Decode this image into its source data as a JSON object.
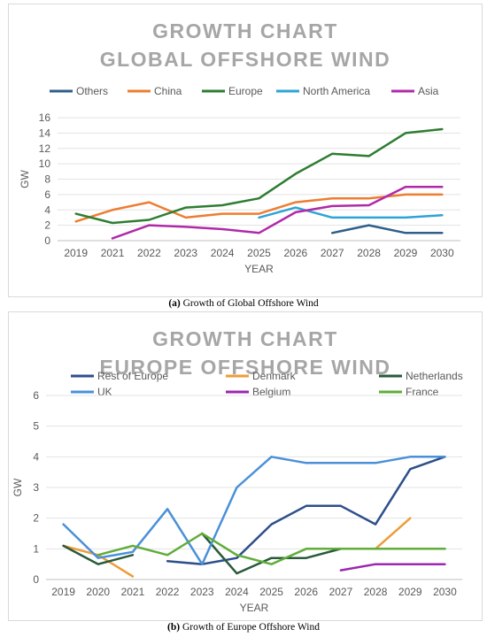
{
  "chart_data": [
    {
      "type": "line",
      "title_lines": [
        "GROWTH CHART",
        "GLOBAL OFFSHORE WIND"
      ],
      "xlabel": "YEAR",
      "ylabel": "GW",
      "ylim": [
        0,
        16
      ],
      "yticks": [
        0,
        2,
        4,
        6,
        8,
        10,
        12,
        14,
        16
      ],
      "categories": [
        "2019",
        "2021",
        "2022",
        "2023",
        "2024",
        "2025",
        "2026",
        "2027",
        "2028",
        "2029",
        "2030"
      ],
      "x_tick_labels": [
        "2019",
        "2021",
        "2022",
        "2023",
        "2024",
        "2025",
        "2026",
        "2027",
        "2028",
        "2029",
        "2030"
      ],
      "legend_position": "top",
      "grid": true,
      "series": [
        {
          "name": "Others",
          "color": "#2e5f8a",
          "values": [
            null,
            null,
            null,
            null,
            null,
            null,
            null,
            1,
            2,
            1,
            1
          ]
        },
        {
          "name": "China",
          "color": "#ed7d31",
          "values": [
            2.5,
            4,
            5,
            3,
            3.5,
            3.5,
            5,
            5.5,
            5.5,
            6,
            6
          ]
        },
        {
          "name": "Europe",
          "color": "#2e7d32",
          "values": [
            3.5,
            2.3,
            2.7,
            4.3,
            4.6,
            5.5,
            8.7,
            11.3,
            11,
            14,
            14.5
          ]
        },
        {
          "name": "North America",
          "color": "#2ea3d6",
          "values": [
            null,
            null,
            null,
            null,
            null,
            3,
            4.3,
            3,
            3,
            3,
            3.3
          ]
        },
        {
          "name": "Asia",
          "color": "#b02aa8",
          "values": [
            null,
            0.3,
            2,
            1.8,
            1.5,
            1,
            3.7,
            4.5,
            4.6,
            7,
            7
          ]
        }
      ]
    },
    {
      "type": "line",
      "title_lines": [
        "GROWTH CHART",
        "EUROPE OFFSHORE WIND"
      ],
      "xlabel": "YEAR",
      "ylabel": "GW",
      "ylim": [
        0,
        6
      ],
      "yticks": [
        0,
        1,
        2,
        3,
        4,
        5,
        6
      ],
      "categories": [
        "2019",
        "2020",
        "2021",
        "2022",
        "2023",
        "2024",
        "2025",
        "2026",
        "2027",
        "2028",
        "2029",
        "2030"
      ],
      "x_tick_labels": [
        "2019",
        "2020",
        "2021",
        "2022",
        "2023",
        "2024",
        "2025",
        "2026",
        "2027",
        "2028",
        "2029",
        "2030"
      ],
      "legend_position": "top",
      "grid": true,
      "series": [
        {
          "name": "Rest of Europe",
          "color": "#2e4f8a",
          "values": [
            null,
            null,
            null,
            0.6,
            0.5,
            0.7,
            1.8,
            2.4,
            2.4,
            1.8,
            3.6,
            4
          ]
        },
        {
          "name": "Denmark",
          "color": "#ed9c3a",
          "values": [
            1.1,
            0.8,
            0.1,
            null,
            null,
            null,
            null,
            null,
            null,
            1,
            2,
            null
          ]
        },
        {
          "name": "Netherlands",
          "color": "#2a5a3a",
          "values": [
            1.1,
            0.5,
            0.8,
            null,
            1.5,
            0.2,
            0.7,
            0.7,
            1,
            1,
            1,
            1
          ]
        },
        {
          "name": "UK",
          "color": "#4a90d9",
          "values": [
            1.8,
            0.7,
            0.9,
            2.3,
            0.5,
            3,
            4,
            3.8,
            3.8,
            3.8,
            4,
            4
          ]
        },
        {
          "name": "Belgium",
          "color": "#9c27b0",
          "values": [
            null,
            null,
            null,
            null,
            null,
            null,
            null,
            null,
            0.3,
            0.5,
            0.5,
            0.5
          ]
        },
        {
          "name": "France",
          "color": "#5fad3a",
          "values": [
            null,
            0.8,
            1.1,
            0.8,
            1.5,
            0.8,
            0.5,
            1,
            1,
            1,
            1,
            1
          ]
        }
      ]
    }
  ],
  "captions": {
    "a_label": "(a)",
    "a_text": " Growth of Global Offshore Wind",
    "b_label": "(b)",
    "b_text": " Growth of Europe Offshore Wind"
  }
}
